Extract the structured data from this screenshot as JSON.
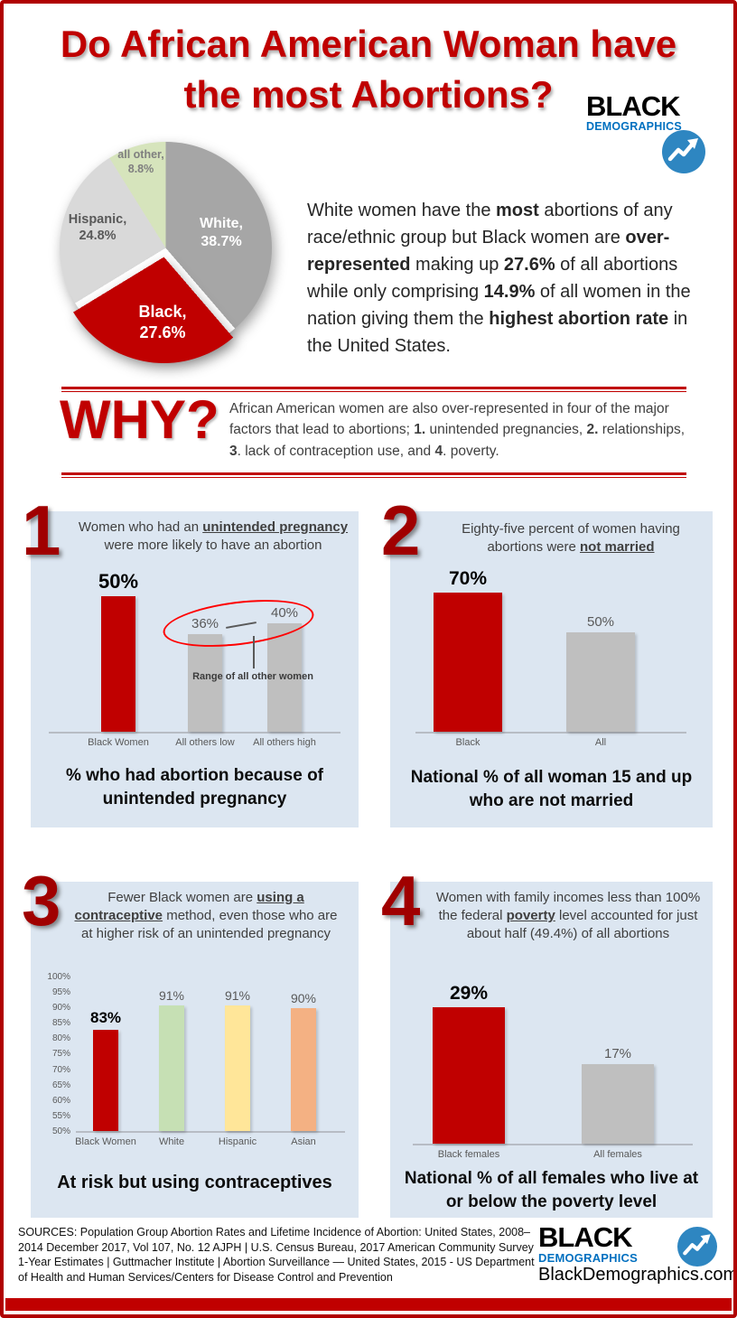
{
  "header": {
    "title_line1": "Do African American Woman have",
    "title_line2": "the most Abortions?"
  },
  "logo": {
    "word1": "BLACK",
    "word2": "DEMOGRAPHICS",
    "site": "BlackDemographics.com",
    "text_blue": "#0070c0",
    "circle_blue": "#2e86c1"
  },
  "colors": {
    "accent_red": "#c00000",
    "panel_blue": "#dce6f1",
    "bar_gray": "#bfbfbf"
  },
  "intro": {
    "segments": [
      {
        "text": "White women have the "
      },
      {
        "text": "most",
        "bold": true
      },
      {
        "text": " abortions of any race/ethnic group but Black women are "
      },
      {
        "text": "over-represented",
        "bold": true
      },
      {
        "text": " making up "
      },
      {
        "text": "27.6%",
        "bold": true
      },
      {
        "text": " of all abortions while only comprising "
      },
      {
        "text": "14.9%",
        "bold": true
      },
      {
        "text": " of all women in the nation giving them the "
      },
      {
        "text": "highest abortion rate",
        "bold": true
      },
      {
        "text": " in the United States."
      }
    ]
  },
  "why": {
    "heading": "WHY?",
    "segments": [
      {
        "text": "African American women are also over-represented in four of the major factors that lead to abortions; "
      },
      {
        "text": "1.",
        "bold": true
      },
      {
        "text": " unintended pregnancies, "
      },
      {
        "text": "2.",
        "bold": true
      },
      {
        "text": " relationships, "
      },
      {
        "text": "3",
        "bold": true
      },
      {
        "text": ". lack of contraception use, and "
      },
      {
        "text": "4",
        "bold": true
      },
      {
        "text": ". poverty."
      }
    ]
  },
  "chart_data": [
    {
      "id": "abortions-by-race",
      "type": "pie",
      "labels": [
        "White",
        "Black",
        "Hispanic",
        "all other"
      ],
      "values": [
        38.7,
        27.6,
        24.8,
        8.8
      ],
      "colors": [
        "#a6a6a6",
        "#c00000",
        "#d9d9d9",
        "#d6e4bc"
      ],
      "exploded_index": 1,
      "slice_labels": [
        {
          "name": "White,",
          "value": "38.7%"
        },
        {
          "name": "Black,",
          "value": "27.6%"
        },
        {
          "name": "Hispanic,",
          "value": "24.8%"
        },
        {
          "name": "all other,",
          "value": "8.8%"
        }
      ]
    },
    {
      "id": "unintended-pregnancy-abortion",
      "number": "1",
      "type": "bar",
      "header_segments": [
        {
          "text": "Women who had an "
        },
        {
          "text": "unintended pregnancy",
          "bold": true,
          "underline": true
        },
        {
          "text": " were more likely to have an abortion"
        }
      ],
      "categories": [
        "Black Women",
        "All others low",
        "All others high"
      ],
      "values": [
        50,
        36,
        40
      ],
      "value_labels": [
        "50%",
        "36%",
        "40%"
      ],
      "bar_colors": [
        "#c00000",
        "#bfbfbf",
        "#bfbfbf"
      ],
      "annotation": "Range of all other women",
      "caption": "% who had abortion because of unintended pregnancy"
    },
    {
      "id": "not-married",
      "number": "2",
      "type": "bar",
      "header_segments": [
        {
          "text": "Eighty-five percent of women having abortions were "
        },
        {
          "text": "not married",
          "bold": true,
          "underline": true
        }
      ],
      "categories": [
        "Black",
        "All"
      ],
      "values": [
        70,
        50
      ],
      "value_labels": [
        "70%",
        "50%"
      ],
      "bar_colors": [
        "#c00000",
        "#bfbfbf"
      ],
      "caption": "National % of all woman 15 and up who are not married"
    },
    {
      "id": "contraceptive-use",
      "number": "3",
      "type": "bar",
      "header_segments": [
        {
          "text": "Fewer Black women are "
        },
        {
          "text": "using a contraceptive",
          "bold": true,
          "underline": true
        },
        {
          "text": " method, even those who are at higher risk of an unintended pregnancy"
        }
      ],
      "categories": [
        "Black Women",
        "White",
        "Hispanic",
        "Asian"
      ],
      "values": [
        83,
        91,
        91,
        90
      ],
      "value_labels": [
        "83%",
        "91%",
        "91%",
        "90%"
      ],
      "bar_colors": [
        "#c00000",
        "#c6e0b4",
        "#ffe699",
        "#f4b183"
      ],
      "ylim": [
        50,
        100
      ],
      "yticks": [
        "100%",
        "95%",
        "90%",
        "85%",
        "80%",
        "75%",
        "70%",
        "65%",
        "60%",
        "55%",
        "50%"
      ],
      "caption": "At risk but using contraceptives"
    },
    {
      "id": "poverty-level",
      "number": "4",
      "type": "bar",
      "header_segments": [
        {
          "text": "Women with family incomes less than 100% the federal "
        },
        {
          "text": "poverty",
          "bold": true,
          "underline": true
        },
        {
          "text": " level accounted for just about half (49.4%) of all abortions"
        }
      ],
      "categories": [
        "Black females",
        "All females"
      ],
      "values": [
        29,
        17
      ],
      "value_labels": [
        "29%",
        "17%"
      ],
      "bar_colors": [
        "#c00000",
        "#bfbfbf"
      ],
      "caption": "National % of all females who live at or below the poverty level"
    }
  ],
  "sources": "SOURCES: Population Group Abortion Rates and Lifetime Incidence of Abortion: United States, 2008–2014 December 2017, Vol 107, No. 12 AJPH | U.S. Census Bureau, 2017 American Community Survey 1-Year Estimates | Guttmacher Institute | Abortion Surveillance — United States, 2015 - US Department of Health and Human Services/Centers for Disease Control and Prevention"
}
